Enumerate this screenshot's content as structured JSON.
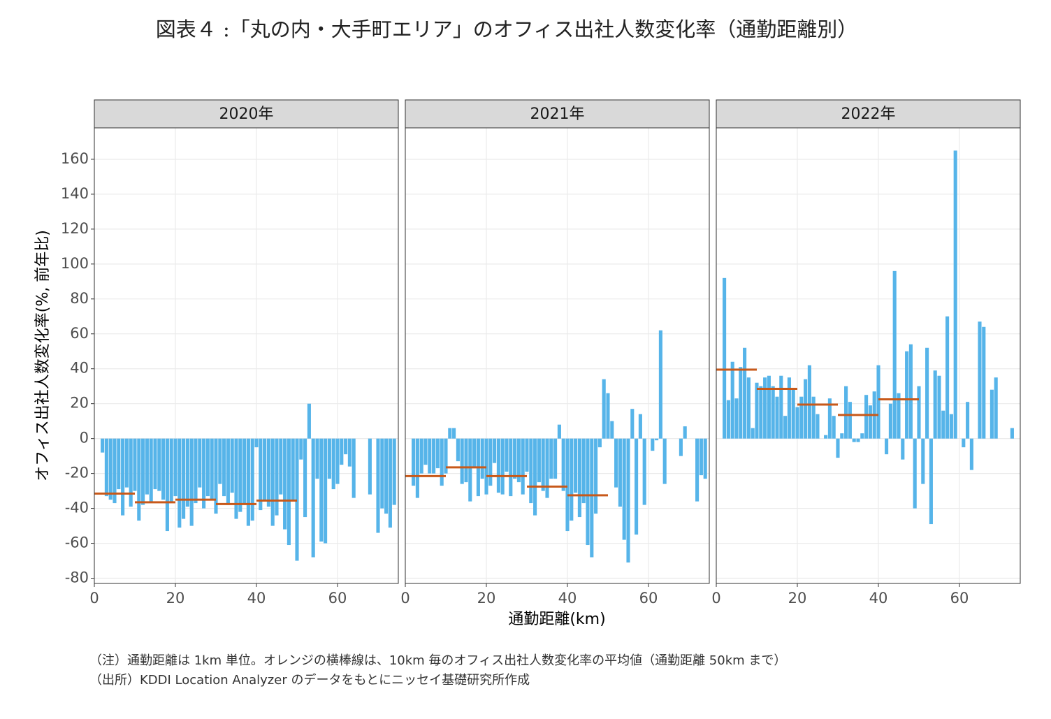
{
  "title": "図表４ :「丸の内・大手町エリア」のオフィス出社人数変化率（通勤距離別）",
  "xlabel": "通勤距離(km)",
  "ylabel": "オフィス出社人数変化率(%, 前年比)",
  "notes": [
    "（注）通勤距離は 1km 単位。オレンジの横棒線は、10km 毎のオフィス出社人数変化率の平均値（通勤距離 50km まで）",
    "（出所）KDDI Location Analyzer のデータをもとにニッセイ基礎研究所作成"
  ],
  "chart_data": [
    {
      "type": "bar",
      "title": "2020年",
      "color": "#56b4e9",
      "grid": true,
      "xlim": [
        0,
        75
      ],
      "xticks": [
        0,
        20,
        40,
        60
      ],
      "ylim": [
        -83,
        178
      ],
      "yticks": [
        -80,
        -60,
        -40,
        -20,
        0,
        20,
        40,
        60,
        80,
        100,
        120,
        140,
        160
      ],
      "x": [
        2,
        3,
        4,
        5,
        6,
        7,
        8,
        9,
        10,
        11,
        12,
        13,
        14,
        15,
        16,
        17,
        18,
        19,
        20,
        21,
        22,
        23,
        24,
        25,
        26,
        27,
        28,
        29,
        30,
        31,
        32,
        33,
        34,
        35,
        36,
        37,
        38,
        39,
        40,
        41,
        42,
        43,
        44,
        45,
        46,
        47,
        48,
        49,
        50,
        51,
        52,
        53,
        54,
        55,
        56,
        57,
        58,
        59,
        60,
        61,
        62,
        63,
        64,
        65,
        66,
        67,
        68,
        69,
        70,
        71,
        72,
        73,
        74
      ],
      "values": [
        -8,
        -33,
        -35,
        -37,
        -29,
        -44,
        -28,
        -39,
        -30,
        -47,
        -38,
        -32,
        -36,
        -29,
        -30,
        -35,
        -53,
        -36,
        -33,
        -51,
        -46,
        -39,
        -50,
        -37,
        -28,
        -40,
        -33,
        -35,
        -43,
        -26,
        -33,
        -38,
        -31,
        -46,
        -42,
        -37,
        -50,
        -47,
        -5,
        -41,
        -35,
        -39,
        -50,
        -44,
        -32,
        -52,
        -61,
        -35,
        -70,
        -12,
        -45,
        20,
        -68,
        -23,
        -59,
        -60,
        -23,
        -29,
        -26,
        -15,
        -9,
        -16,
        -34,
        null,
        null,
        null,
        -32,
        null,
        -54,
        -40,
        -43,
        -51,
        -38
      ],
      "means": {
        "color": "#c8591a",
        "bins": [
          0,
          10,
          20,
          30,
          40,
          50
        ],
        "values": [
          -31.5,
          -36.5,
          -35,
          -37.5,
          -35.5
        ]
      }
    },
    {
      "type": "bar",
      "title": "2021年",
      "color": "#56b4e9",
      "grid": true,
      "xlim": [
        0,
        75
      ],
      "xticks": [
        0,
        20,
        40,
        60
      ],
      "ylim": [
        -83,
        178
      ],
      "yticks": [
        -80,
        -60,
        -40,
        -20,
        0,
        20,
        40,
        60,
        80,
        100,
        120,
        140,
        160
      ],
      "x": [
        2,
        3,
        4,
        5,
        6,
        7,
        8,
        9,
        10,
        11,
        12,
        13,
        14,
        15,
        16,
        17,
        18,
        19,
        20,
        21,
        22,
        23,
        24,
        25,
        26,
        27,
        28,
        29,
        30,
        31,
        32,
        33,
        34,
        35,
        36,
        37,
        38,
        39,
        40,
        41,
        42,
        43,
        44,
        45,
        46,
        47,
        48,
        49,
        50,
        51,
        52,
        53,
        54,
        55,
        56,
        57,
        58,
        59,
        60,
        61,
        62,
        63,
        64,
        65,
        66,
        67,
        68,
        69,
        70,
        71,
        72,
        73,
        74
      ],
      "values": [
        -27,
        -34,
        -20,
        -15,
        -20,
        -20,
        -17,
        -27,
        -20,
        6,
        6,
        -13,
        -26,
        -25,
        -36,
        -17,
        -33,
        -23,
        -32,
        -27,
        -14,
        -31,
        -32,
        -19,
        -33,
        -23,
        -25,
        -32,
        -19,
        -37,
        -44,
        -25,
        -30,
        -34,
        -23,
        -23,
        8,
        -30,
        -53,
        -47,
        -31,
        -45,
        -37,
        -61,
        -68,
        -43,
        -5,
        34,
        26,
        10,
        -28,
        -39,
        -58,
        -71,
        17,
        -55,
        14,
        -38,
        null,
        -7,
        -1,
        62,
        -26,
        null,
        null,
        null,
        -10,
        7,
        null,
        null,
        -36,
        -21,
        -23
      ],
      "means": {
        "color": "#c8591a",
        "bins": [
          0,
          10,
          20,
          30,
          40,
          50
        ],
        "values": [
          -21.5,
          -16.5,
          -21.5,
          -27.5,
          -32.5
        ]
      }
    },
    {
      "type": "bar",
      "title": "2022年",
      "color": "#56b4e9",
      "grid": true,
      "xlim": [
        0,
        75
      ],
      "xticks": [
        0,
        20,
        40,
        60
      ],
      "ylim": [
        -83,
        178
      ],
      "yticks": [
        -80,
        -60,
        -40,
        -20,
        0,
        20,
        40,
        60,
        80,
        100,
        120,
        140,
        160
      ],
      "x": [
        2,
        3,
        4,
        5,
        6,
        7,
        8,
        9,
        10,
        11,
        12,
        13,
        14,
        15,
        16,
        17,
        18,
        19,
        20,
        21,
        22,
        23,
        24,
        25,
        26,
        27,
        28,
        29,
        30,
        31,
        32,
        33,
        34,
        35,
        36,
        37,
        38,
        39,
        40,
        41,
        42,
        43,
        44,
        45,
        46,
        47,
        48,
        49,
        50,
        51,
        52,
        53,
        54,
        55,
        56,
        57,
        58,
        59,
        60,
        61,
        62,
        63,
        64,
        65,
        66,
        67,
        68,
        69,
        70,
        71,
        72,
        73,
        74
      ],
      "values": [
        92,
        22,
        44,
        23,
        41,
        52,
        35,
        6,
        32,
        30,
        35,
        36,
        30,
        24,
        36,
        13,
        35,
        29,
        18,
        24,
        34,
        42,
        24,
        14,
        0,
        2,
        23,
        13,
        -11,
        3,
        30,
        21,
        -2,
        -2,
        3,
        25,
        19,
        27,
        42,
        null,
        -9,
        20,
        96,
        26,
        -12,
        50,
        54,
        -40,
        30,
        -26,
        52,
        -49,
        39,
        36,
        16,
        70,
        14,
        165,
        null,
        -5,
        21,
        -18,
        null,
        67,
        64,
        null,
        28,
        35,
        null,
        null,
        null,
        6,
        null
      ],
      "means": {
        "color": "#c8591a",
        "bins": [
          0,
          10,
          20,
          30,
          40,
          50
        ],
        "values": [
          39.5,
          28.5,
          19.5,
          13.5,
          22.5
        ]
      }
    }
  ]
}
